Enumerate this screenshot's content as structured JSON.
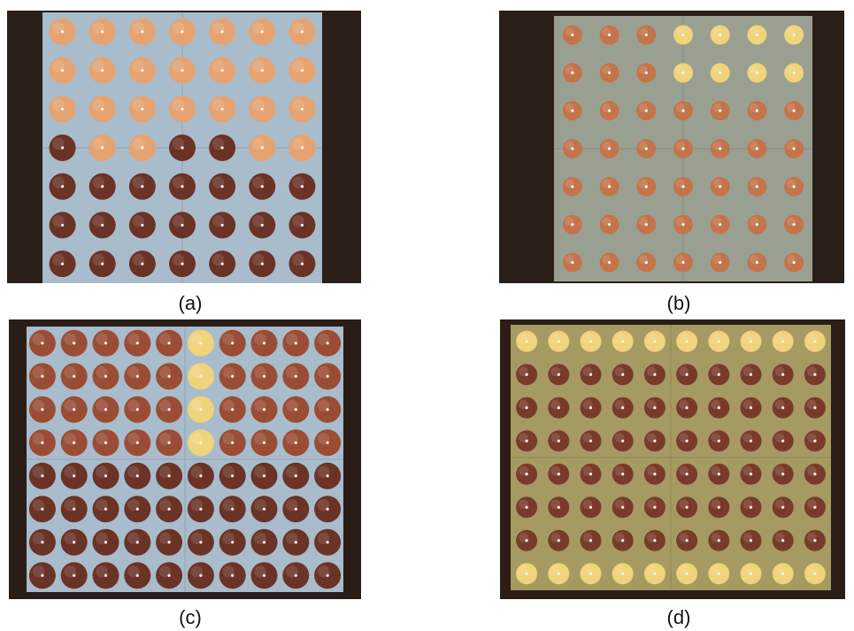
{
  "figure": {
    "captions": [
      "(a)",
      "(b)",
      "(c)",
      "(d)"
    ]
  },
  "panels": [
    {
      "id": "a",
      "cols": 7,
      "rows": 7,
      "board": "#a9bccb",
      "bg": "#2b1f1a",
      "pads": "copper-mixed"
    },
    {
      "id": "b",
      "cols": 7,
      "rows": 7,
      "board": "#9aa091",
      "bg": "#2a1e18",
      "pads": "copper-mixed"
    },
    {
      "id": "c",
      "cols": 10,
      "rows": 8,
      "board": "#a8bccc",
      "bg": "#2a1d17",
      "pads": "copper-dark"
    },
    {
      "id": "d",
      "cols": 10,
      "rows": 8,
      "board": "#a59a61",
      "bg": "#2b1e17",
      "pads": "copper-dark"
    }
  ],
  "colors": {
    "pad_bright": "#e6a36f",
    "pad_dark": "#6b3226",
    "pad_gold": "#f0d37a"
  }
}
